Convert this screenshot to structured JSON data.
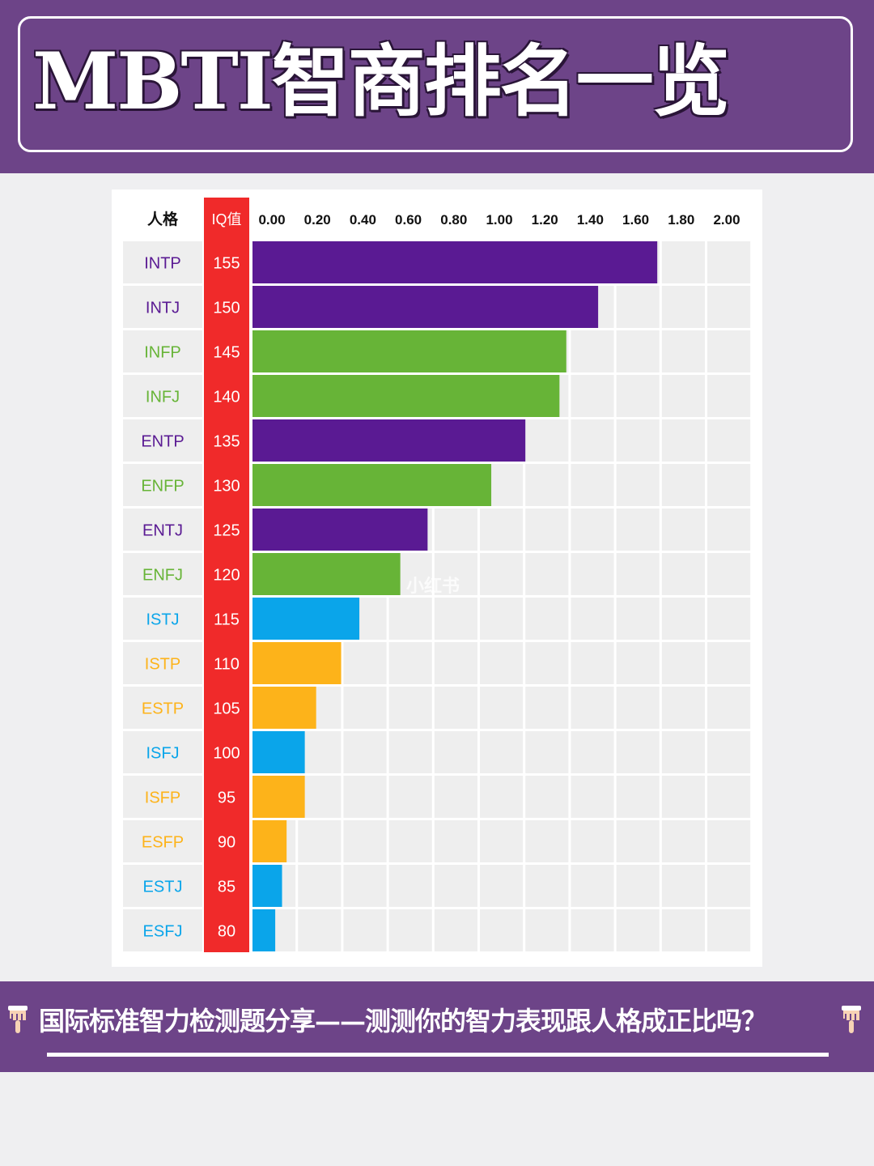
{
  "header": {
    "title": "MBTI智商排名一览"
  },
  "footer": {
    "caption": "国际标准智力检测题分享——测测你的智力表现跟人格成正比吗？"
  },
  "watermark": "小红书",
  "colors": {
    "header_bg": "#6d4488",
    "purple_bar": "#5a1a93",
    "green_bar": "#67b437",
    "blue_bar": "#0aa5ea",
    "orange_bar": "#fdb31a",
    "iq_column": "#f02a2a",
    "grid_bg": "#eeeeee"
  },
  "chart_data": {
    "type": "bar",
    "orientation": "horizontal",
    "column_headers": [
      "人格",
      "IQ值"
    ],
    "xlim": [
      0,
      2.0
    ],
    "x_ticks": [
      "0.00",
      "0.20",
      "0.40",
      "0.60",
      "0.80",
      "1.00",
      "1.20",
      "1.40",
      "1.60",
      "1.80",
      "2.00"
    ],
    "grid": true,
    "rows": [
      {
        "type": "INTP",
        "iq": "155",
        "value": 1.78,
        "group": "purple"
      },
      {
        "type": "INTJ",
        "iq": "150",
        "value": 1.52,
        "group": "purple"
      },
      {
        "type": "INFP",
        "iq": "145",
        "value": 1.38,
        "group": "green"
      },
      {
        "type": "INFJ",
        "iq": "140",
        "value": 1.35,
        "group": "green"
      },
      {
        "type": "ENTP",
        "iq": "135",
        "value": 1.2,
        "group": "purple"
      },
      {
        "type": "ENFP",
        "iq": "130",
        "value": 1.05,
        "group": "green"
      },
      {
        "type": "ENTJ",
        "iq": "125",
        "value": 0.77,
        "group": "purple"
      },
      {
        "type": "ENFJ",
        "iq": "120",
        "value": 0.65,
        "group": "green"
      },
      {
        "type": "ISTJ",
        "iq": "115",
        "value": 0.47,
        "group": "blue"
      },
      {
        "type": "ISTP",
        "iq": "110",
        "value": 0.39,
        "group": "orange"
      },
      {
        "type": "ESTP",
        "iq": "105",
        "value": 0.28,
        "group": "orange"
      },
      {
        "type": "ISFJ",
        "iq": "100",
        "value": 0.23,
        "group": "blue"
      },
      {
        "type": "ISFP",
        "iq": "95",
        "value": 0.23,
        "group": "orange"
      },
      {
        "type": "ESFP",
        "iq": "90",
        "value": 0.15,
        "group": "orange"
      },
      {
        "type": "ESTJ",
        "iq": "85",
        "value": 0.13,
        "group": "blue"
      },
      {
        "type": "ESFJ",
        "iq": "80",
        "value": 0.1,
        "group": "blue"
      }
    ]
  }
}
